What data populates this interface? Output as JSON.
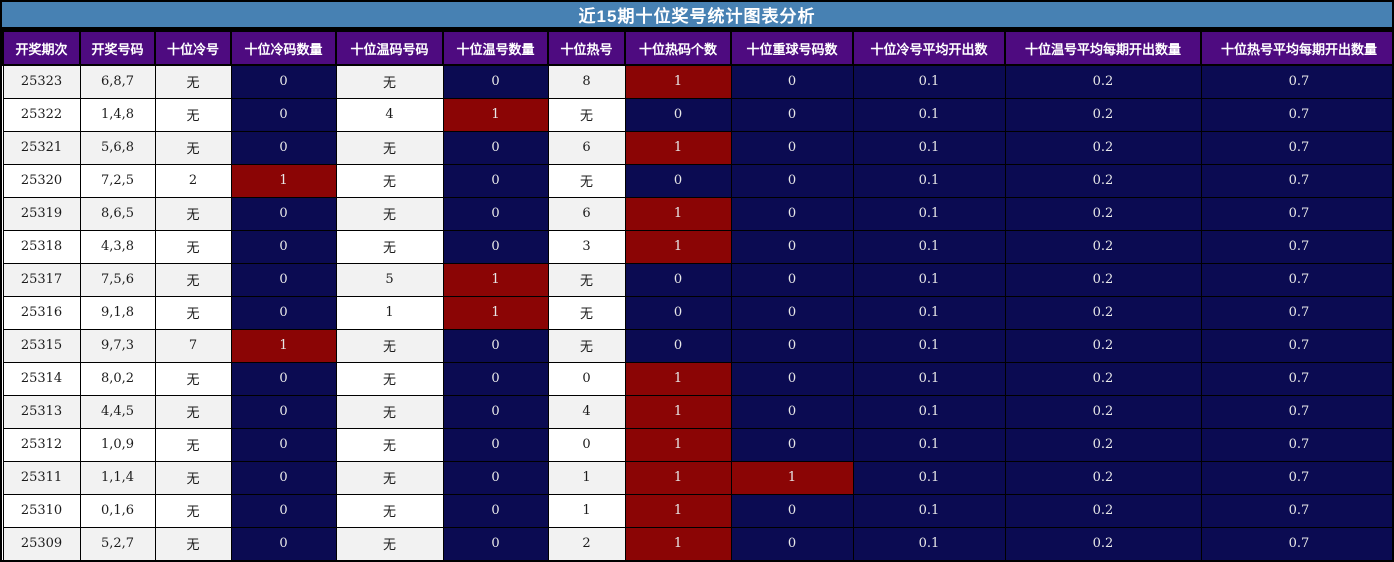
{
  "title": "近15期十位奖号统计图表分析",
  "colors": {
    "title_bar_bg": "#4781b3",
    "header_bg": "#4e0b80",
    "navy_cell_bg": "#0b0b52",
    "red_cell_bg": "#8b0505",
    "row_odd_bg": "#f2f2f2",
    "row_even_bg": "#ffffff",
    "cell_light_text": "#e8e8e8",
    "cell_dark_text": "#1c1c1c",
    "header_text": "#ffffff",
    "border": "#000000"
  },
  "chart_data": {
    "type": "table",
    "title": "近15期十位奖号统计图表分析",
    "columns": [
      "开奖期次",
      "开奖号码",
      "十位冷号",
      "十位冷码数量",
      "十位温码号码",
      "十位温号数量",
      "十位热号",
      "十位热码个数",
      "十位重球号码数",
      "十位冷号平均开出数",
      "十位温号平均每期开出数量",
      "十位热号平均每期开出数量"
    ],
    "rows": [
      [
        "25323",
        "6,8,7",
        "无",
        "0",
        "无",
        "0",
        "8",
        "1",
        "0",
        "0.1",
        "0.2",
        "0.7"
      ],
      [
        "25322",
        "1,4,8",
        "无",
        "0",
        "4",
        "1",
        "无",
        "0",
        "0",
        "0.1",
        "0.2",
        "0.7"
      ],
      [
        "25321",
        "5,6,8",
        "无",
        "0",
        "无",
        "0",
        "6",
        "1",
        "0",
        "0.1",
        "0.2",
        "0.7"
      ],
      [
        "25320",
        "7,2,5",
        "2",
        "1",
        "无",
        "0",
        "无",
        "0",
        "0",
        "0.1",
        "0.2",
        "0.7"
      ],
      [
        "25319",
        "8,6,5",
        "无",
        "0",
        "无",
        "0",
        "6",
        "1",
        "0",
        "0.1",
        "0.2",
        "0.7"
      ],
      [
        "25318",
        "4,3,8",
        "无",
        "0",
        "无",
        "0",
        "3",
        "1",
        "0",
        "0.1",
        "0.2",
        "0.7"
      ],
      [
        "25317",
        "7,5,6",
        "无",
        "0",
        "5",
        "1",
        "无",
        "0",
        "0",
        "0.1",
        "0.2",
        "0.7"
      ],
      [
        "25316",
        "9,1,8",
        "无",
        "0",
        "1",
        "1",
        "无",
        "0",
        "0",
        "0.1",
        "0.2",
        "0.7"
      ],
      [
        "25315",
        "9,7,3",
        "7",
        "1",
        "无",
        "0",
        "无",
        "0",
        "0",
        "0.1",
        "0.2",
        "0.7"
      ],
      [
        "25314",
        "8,0,2",
        "无",
        "0",
        "无",
        "0",
        "0",
        "1",
        "0",
        "0.1",
        "0.2",
        "0.7"
      ],
      [
        "25313",
        "4,4,5",
        "无",
        "0",
        "无",
        "0",
        "4",
        "1",
        "0",
        "0.1",
        "0.2",
        "0.7"
      ],
      [
        "25312",
        "1,0,9",
        "无",
        "0",
        "无",
        "0",
        "0",
        "1",
        "0",
        "0.1",
        "0.2",
        "0.7"
      ],
      [
        "25311",
        "1,1,4",
        "无",
        "0",
        "无",
        "0",
        "1",
        "1",
        "1",
        "0.1",
        "0.2",
        "0.7"
      ],
      [
        "25310",
        "0,1,6",
        "无",
        "0",
        "无",
        "0",
        "1",
        "1",
        "0",
        "0.1",
        "0.2",
        "0.7"
      ],
      [
        "25309",
        "5,2,7",
        "无",
        "0",
        "无",
        "0",
        "2",
        "1",
        "0",
        "0.1",
        "0.2",
        "0.7"
      ]
    ]
  }
}
